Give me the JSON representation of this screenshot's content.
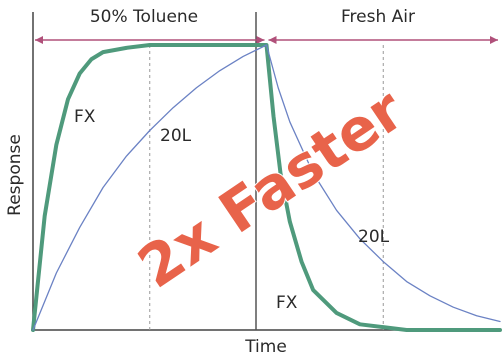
{
  "chart_data": {
    "type": "line",
    "title": "",
    "xlabel": "Time",
    "ylabel": "Response",
    "phases": [
      {
        "label": "50% Toluene",
        "x_start": 0.0,
        "x_end": 1.0
      },
      {
        "label": "Fresh Air",
        "x_start": 1.0,
        "x_end": 2.0
      }
    ],
    "guide_x": [
      0.5,
      1.5
    ],
    "xlim": [
      0,
      2
    ],
    "ylim": [
      0,
      1
    ],
    "series": [
      {
        "name": "FX",
        "color": "#4f9a7c",
        "points": [
          [
            0,
            0
          ],
          [
            0.05,
            0.4
          ],
          [
            0.1,
            0.65
          ],
          [
            0.15,
            0.81
          ],
          [
            0.2,
            0.9
          ],
          [
            0.25,
            0.95
          ],
          [
            0.3,
            0.975
          ],
          [
            0.4,
            0.99
          ],
          [
            0.5,
            1.0
          ],
          [
            0.75,
            1.0
          ],
          [
            1.0,
            1.0
          ],
          [
            1.03,
            0.75
          ],
          [
            1.06,
            0.55
          ],
          [
            1.1,
            0.38
          ],
          [
            1.15,
            0.24
          ],
          [
            1.2,
            0.14
          ],
          [
            1.3,
            0.06
          ],
          [
            1.4,
            0.02
          ],
          [
            1.5,
            0.01
          ],
          [
            1.6,
            0.0
          ],
          [
            2.0,
            0.0
          ]
        ]
      },
      {
        "name": "20L",
        "color": "#6b82c4",
        "points": [
          [
            0,
            0
          ],
          [
            0.1,
            0.2
          ],
          [
            0.2,
            0.36
          ],
          [
            0.3,
            0.5
          ],
          [
            0.4,
            0.61
          ],
          [
            0.5,
            0.7
          ],
          [
            0.6,
            0.78
          ],
          [
            0.7,
            0.85
          ],
          [
            0.8,
            0.91
          ],
          [
            0.9,
            0.96
          ],
          [
            1.0,
            1.0
          ],
          [
            1.05,
            0.85
          ],
          [
            1.1,
            0.73
          ],
          [
            1.2,
            0.55
          ],
          [
            1.3,
            0.42
          ],
          [
            1.4,
            0.32
          ],
          [
            1.5,
            0.24
          ],
          [
            1.6,
            0.17
          ],
          [
            1.7,
            0.12
          ],
          [
            1.8,
            0.08
          ],
          [
            1.9,
            0.05
          ],
          [
            2.0,
            0.03
          ]
        ]
      }
    ],
    "series_labels": [
      {
        "text": "FX",
        "series": "FX"
      },
      {
        "text": "20L",
        "series": "20L"
      },
      {
        "text": "20L",
        "series": "20L"
      },
      {
        "text": "FX",
        "series": "FX"
      }
    ],
    "annotation": {
      "text": "2x Faster",
      "color": "#e8634a"
    }
  }
}
